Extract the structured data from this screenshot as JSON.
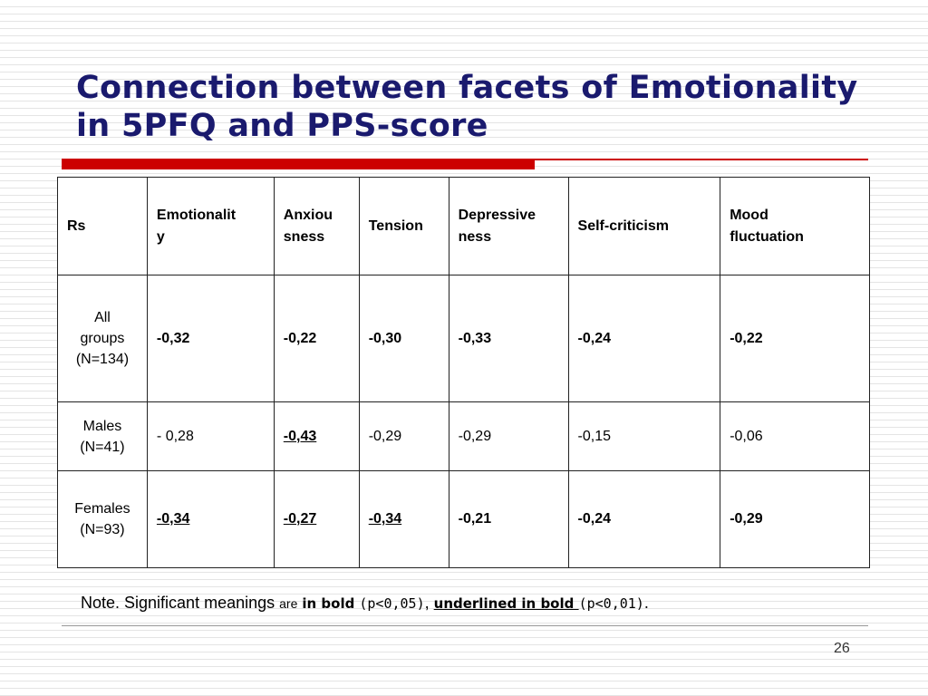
{
  "slide": {
    "title_line1": "Connection between facets of Emotionality",
    "title_line2": "in 5PFQ and PPS-score",
    "accent_color": "#cc0000",
    "title_color": "#1a1a6e",
    "page_number": "26"
  },
  "table": {
    "header": {
      "c0": "Rs",
      "c1a": "Emotionalit",
      "c1b": "y",
      "c2a": "Anxiou",
      "c2b": "sness",
      "c3": "Tension",
      "c4a": "Depressive",
      "c4b": "ness",
      "c5": "Self-criticism",
      "c6a": "Mood",
      "c6b": "fluctuation"
    },
    "rows": [
      {
        "label_a": "All",
        "label_b": "groups",
        "label_c": "(N=134)",
        "values": [
          "-0,32",
          "-0,22",
          "-0,30",
          "-0,33",
          "-0,24",
          "-0,22"
        ],
        "styles": [
          "bold",
          "bold",
          "bold",
          "bold",
          "bold",
          "bold"
        ]
      },
      {
        "label_a": "Males",
        "label_b": "(N=41)",
        "values": [
          "- 0,28",
          "-0,43",
          "-0,29",
          "-0,29",
          "-0,15",
          "-0,06"
        ],
        "styles": [
          "normal",
          "bold-underlined",
          "normal",
          "normal",
          "normal",
          "normal"
        ]
      },
      {
        "label_a": "Females",
        "label_b": "(N=93)",
        "values": [
          "-0,34",
          "-0,27",
          "-0,34",
          "-0,21",
          "-0,24",
          "-0,29"
        ],
        "styles": [
          "bold-underlined",
          "bold-underlined",
          "bold-underlined",
          "bold",
          "bold",
          "bold"
        ]
      }
    ]
  },
  "note": {
    "part1": "Note. Significant meanings ",
    "part2": "are",
    "part3": "in bold",
    "part4": "(p<0,05)",
    "part5": ",",
    "part6": "underlined in bold ",
    "part7": "(p<0,01)",
    "part8": "."
  }
}
